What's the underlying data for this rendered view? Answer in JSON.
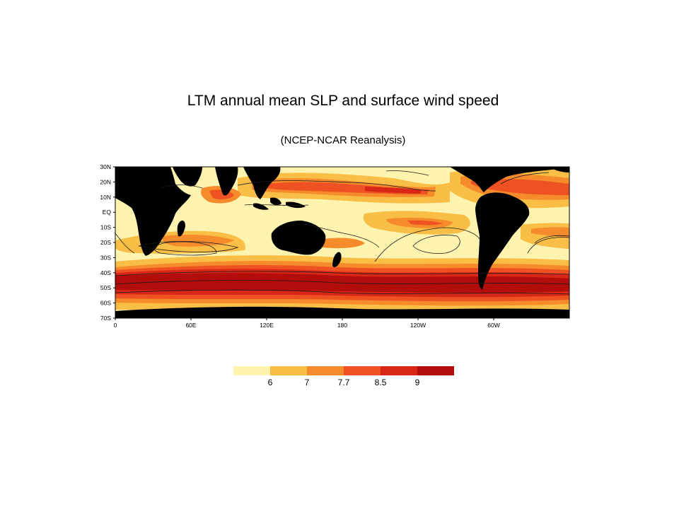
{
  "title": "LTM annual mean SLP and surface wind speed",
  "subtitle": "(NCEP-NCAR Reanalysis)",
  "map": {
    "lat_ticks": [
      "30N",
      "20N",
      "10N",
      "EQ",
      "10S",
      "20S",
      "30S",
      "40S",
      "50S",
      "60S",
      "70S"
    ],
    "lon_ticks": [
      "0",
      "60E",
      "120E",
      "180",
      "120W",
      "60W"
    ],
    "land_color": "#000000"
  },
  "legend": {
    "colors": [
      "#fff3b0",
      "#f8be45",
      "#f68b2c",
      "#ee5222",
      "#d82716",
      "#b30e0b"
    ],
    "labels": [
      "6",
      "7",
      "7.7",
      "8.5",
      "9"
    ],
    "units": ""
  }
}
